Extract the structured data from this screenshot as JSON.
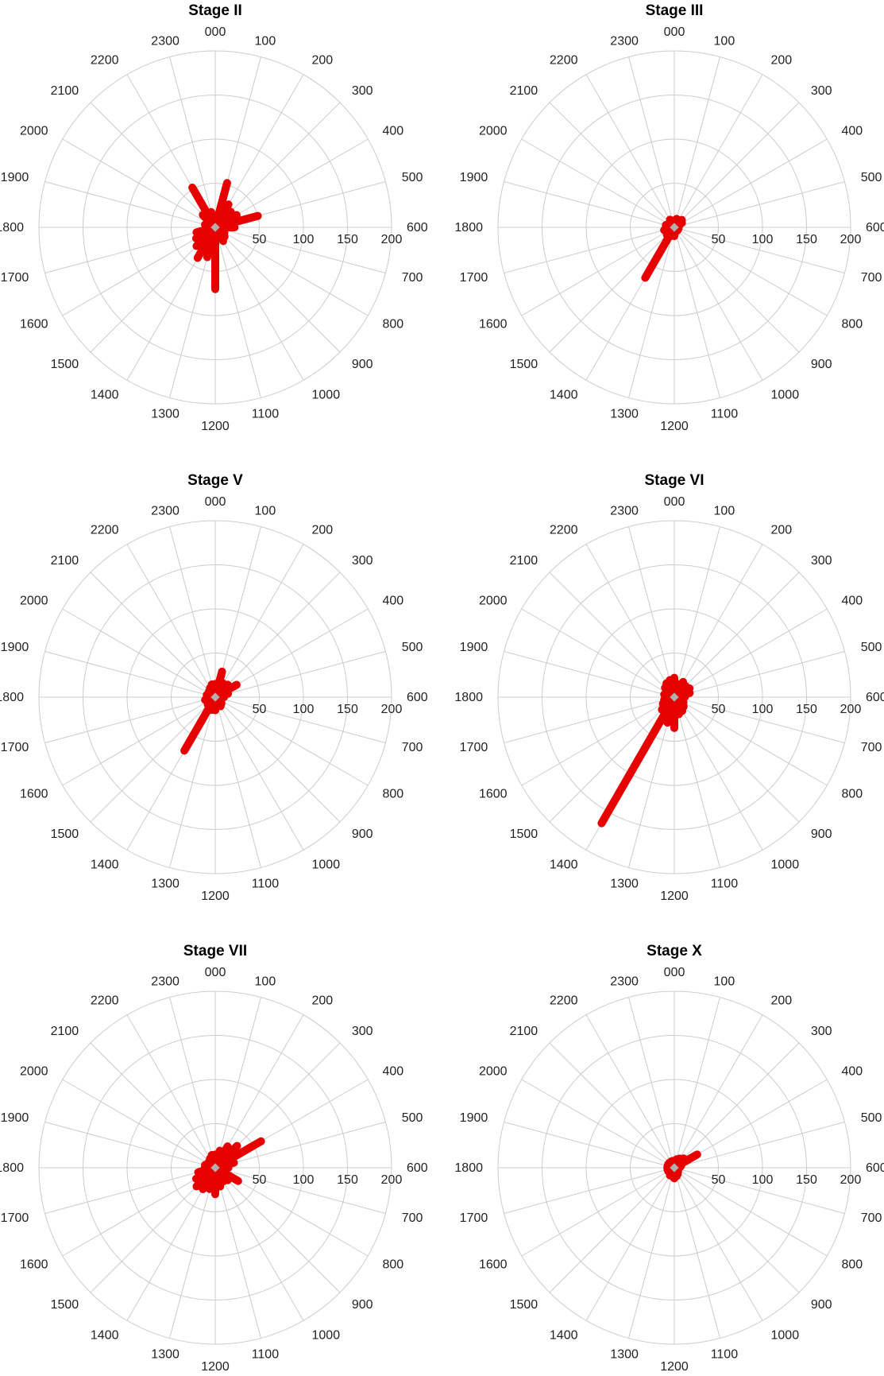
{
  "chart_data": [
    {
      "type": "polar_bar",
      "title": "Stage II",
      "angle_labels": [
        "000",
        "100",
        "200",
        "300",
        "400",
        "500",
        "600",
        "700",
        "800",
        "900",
        "1000",
        "1100",
        "1200",
        "1300",
        "1400",
        "1500",
        "1600",
        "1700",
        "1800",
        "1900",
        "2000",
        "2100",
        "2200",
        "2300"
      ],
      "radial_ticks": [
        50,
        100,
        150,
        200
      ],
      "rmax": 200,
      "bar_color": "#e60000",
      "values": [
        10,
        52,
        30,
        25,
        28,
        50,
        22,
        8,
        12,
        15,
        18,
        12,
        70,
        35,
        40,
        30,
        25,
        22,
        10,
        12,
        8,
        20,
        52,
        18
      ]
    },
    {
      "type": "polar_bar",
      "title": "Stage III",
      "angle_labels": [
        "000",
        "100",
        "200",
        "300",
        "400",
        "500",
        "600",
        "700",
        "800",
        "900",
        "1000",
        "1100",
        "1200",
        "1300",
        "1400",
        "1500",
        "1600",
        "1700",
        "1800",
        "1900",
        "2000",
        "2100",
        "2200",
        "2300"
      ],
      "radial_ticks": [
        50,
        100,
        150,
        200
      ],
      "rmax": 200,
      "bar_color": "#e60000",
      "values": [
        5,
        10,
        8,
        12,
        10,
        5,
        5,
        5,
        5,
        5,
        5,
        5,
        10,
        10,
        66,
        12,
        10,
        12,
        8,
        10,
        8,
        8,
        10,
        8
      ]
    },
    {
      "type": "polar_bar",
      "title": "Stage V",
      "angle_labels": [
        "000",
        "100",
        "200",
        "300",
        "400",
        "500",
        "600",
        "700",
        "800",
        "900",
        "1000",
        "1100",
        "1200",
        "1300",
        "1400",
        "1500",
        "1600",
        "1700",
        "1800",
        "1900",
        "2000",
        "2100",
        "2200",
        "2300"
      ],
      "radial_ticks": [
        50,
        100,
        150,
        200
      ],
      "rmax": 200,
      "bar_color": "#e60000",
      "values": [
        15,
        30,
        18,
        20,
        28,
        15,
        10,
        5,
        8,
        10,
        12,
        10,
        15,
        15,
        70,
        12,
        10,
        12,
        8,
        10,
        8,
        10,
        12,
        15
      ]
    },
    {
      "type": "polar_bar",
      "title": "Stage VI",
      "angle_labels": [
        "000",
        "100",
        "200",
        "300",
        "400",
        "500",
        "600",
        "700",
        "800",
        "900",
        "1000",
        "1100",
        "1200",
        "1300",
        "1400",
        "1500",
        "1600",
        "1700",
        "1800",
        "1900",
        "2000",
        "2100",
        "2200",
        "2300"
      ],
      "radial_ticks": [
        50,
        100,
        150,
        200
      ],
      "rmax": 200,
      "bar_color": "#e60000",
      "values": [
        22,
        15,
        20,
        18,
        20,
        18,
        12,
        10,
        12,
        15,
        18,
        20,
        35,
        30,
        165,
        20,
        15,
        12,
        10,
        12,
        10,
        15,
        18,
        20
      ]
    },
    {
      "type": "polar_bar",
      "title": "Stage VII",
      "angle_labels": [
        "000",
        "100",
        "200",
        "300",
        "400",
        "500",
        "600",
        "700",
        "800",
        "900",
        "1000",
        "1100",
        "1200",
        "1300",
        "1400",
        "1500",
        "1600",
        "1700",
        "1800",
        "1900",
        "2000",
        "2100",
        "2200",
        "2300"
      ],
      "radial_ticks": [
        50,
        100,
        150,
        200
      ],
      "rmax": 200,
      "bar_color": "#e60000",
      "values": [
        15,
        20,
        28,
        35,
        60,
        22,
        15,
        10,
        30,
        20,
        18,
        22,
        30,
        25,
        28,
        30,
        25,
        20,
        12,
        12,
        10,
        10,
        12,
        15
      ]
    },
    {
      "type": "polar_bar",
      "title": "Stage X",
      "angle_labels": [
        "000",
        "100",
        "200",
        "300",
        "400",
        "500",
        "600",
        "700",
        "800",
        "900",
        "1000",
        "1100",
        "1200",
        "1300",
        "1400",
        "1500",
        "1600",
        "1700",
        "1800",
        "1900",
        "2000",
        "2100",
        "2200",
        "2300"
      ],
      "radial_ticks": [
        50,
        100,
        150,
        200
      ],
      "rmax": 200,
      "bar_color": "#e60000",
      "values": [
        8,
        10,
        12,
        15,
        30,
        8,
        6,
        5,
        5,
        6,
        8,
        10,
        12,
        10,
        10,
        8,
        8,
        8,
        8,
        8,
        8,
        8,
        8,
        8
      ]
    }
  ]
}
